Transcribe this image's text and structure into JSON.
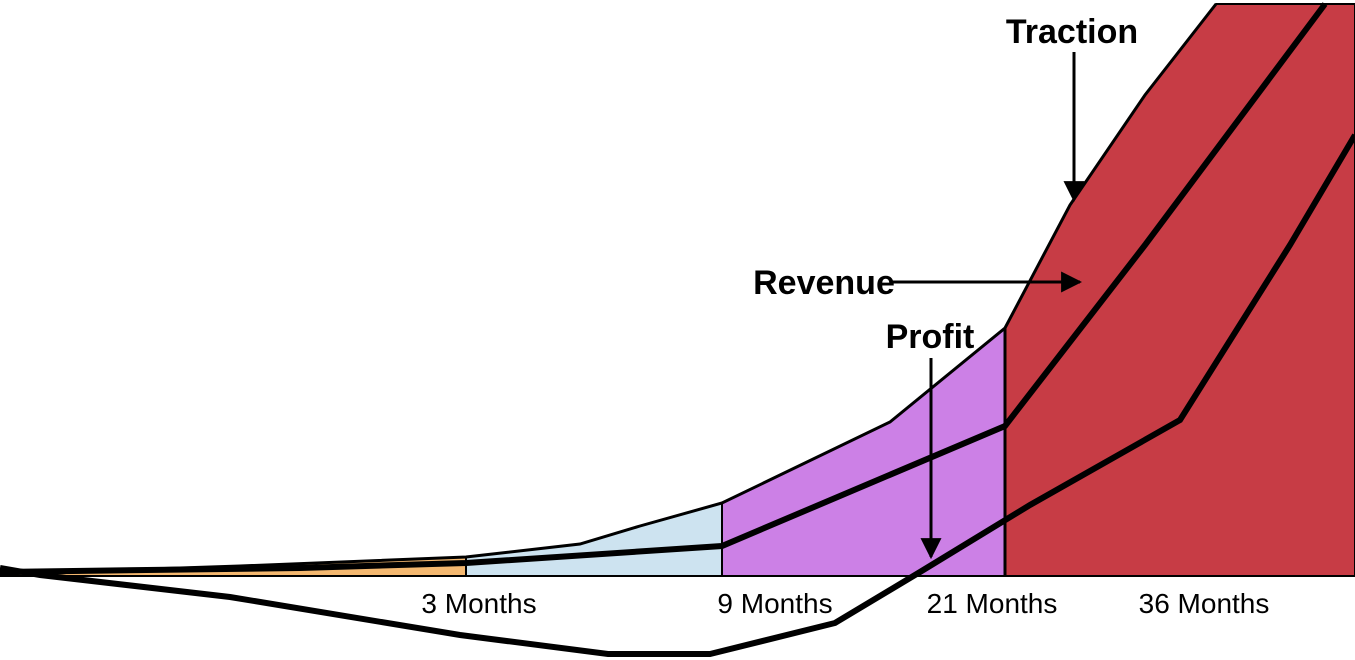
{
  "labels": {
    "traction": "Traction",
    "revenue": "Revenue",
    "profit": "Profit"
  },
  "x_ticks": [
    "3 Months",
    "9 Months",
    "21 Months",
    "36 Months"
  ],
  "colors": {
    "stage1": "#f4b870",
    "stage2": "#cde3f0",
    "stage3": "#cc80e6",
    "stage4": "#c73c45",
    "stroke": "#000000"
  }
}
